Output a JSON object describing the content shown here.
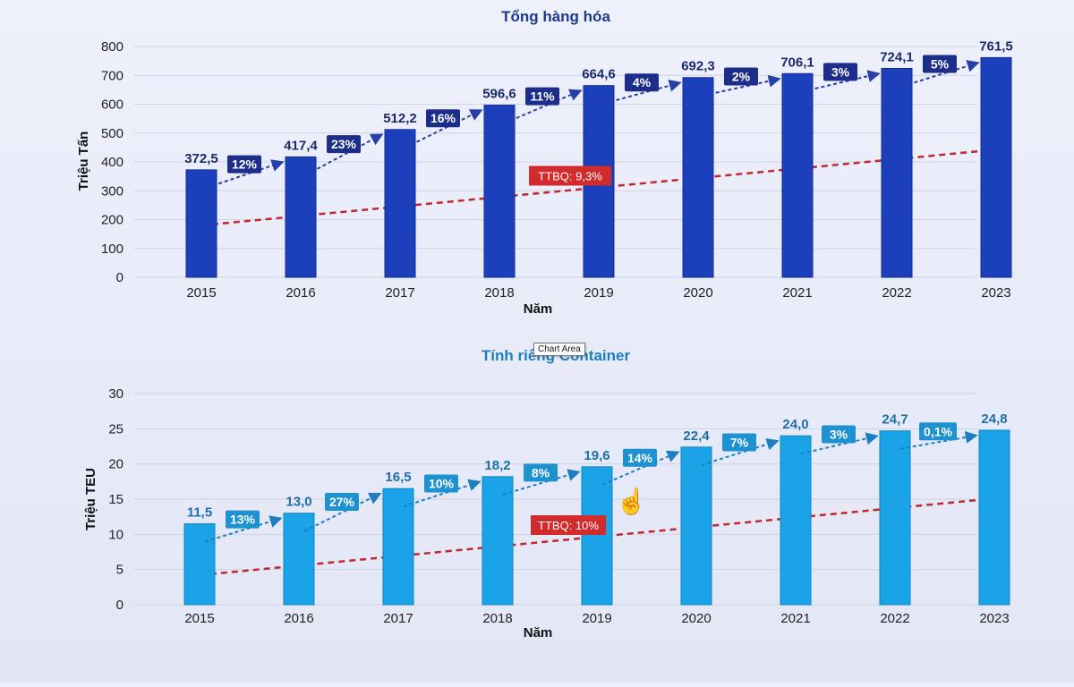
{
  "chart_data": [
    {
      "type": "bar",
      "title": "Tổng hàng hóa",
      "xlabel": "Năm",
      "ylabel": "Triệu Tấn",
      "ylim": [
        0,
        800
      ],
      "yticks": [
        "0",
        "100",
        "200",
        "300",
        "400",
        "500",
        "600",
        "700",
        "800"
      ],
      "categories": [
        "2015",
        "2016",
        "2017",
        "2018",
        "2019",
        "2020",
        "2021",
        "2022",
        "2023"
      ],
      "values": [
        372.5,
        417.4,
        512.2,
        596.6,
        664.6,
        692.3,
        706.1,
        724.1,
        761.5
      ],
      "value_labels": [
        "372,5",
        "417,4",
        "512,2",
        "596,6",
        "664,6",
        "692,3",
        "706,1",
        "724,1",
        "761,5"
      ],
      "growth_labels": [
        "12%",
        "23%",
        "16%",
        "11%",
        "4%",
        "2%",
        "3%",
        "5%"
      ],
      "average_growth_label": "TTBQ: 9,3%",
      "trend_line": [
        [
          2015,
          180
        ],
        [
          2023,
          445
        ]
      ],
      "colors": {
        "bar": "#1c3fbc",
        "bar_edge": "#142d90",
        "title": "#1d3a8a",
        "value": "#1b2a6b",
        "growth_bg": "#1c2d8a",
        "arrow": "#2740a8",
        "trend": "#c0282d",
        "avg_bg": "#d22b2b",
        "grid": "#cfd3e2"
      }
    },
    {
      "type": "bar",
      "title": "Tính riêng Container",
      "xlabel": "Năm",
      "ylabel": "Triệu TEU",
      "ylim": [
        0,
        30
      ],
      "yticks": [
        "0",
        "5",
        "10",
        "15",
        "20",
        "25",
        "30"
      ],
      "categories": [
        "2015",
        "2016",
        "2017",
        "2018",
        "2019",
        "2020",
        "2021",
        "2022",
        "2023"
      ],
      "values": [
        11.5,
        13.0,
        16.5,
        18.2,
        19.6,
        22.4,
        24.0,
        24.7,
        24.8
      ],
      "value_labels": [
        "11,5",
        "13,0",
        "16,5",
        "18,2",
        "19,6",
        "22,4",
        "24,0",
        "24,7",
        "24,8"
      ],
      "growth_labels": [
        "13%",
        "27%",
        "10%",
        "8%",
        "14%",
        "7%",
        "3%",
        "0,1%"
      ],
      "average_growth_label": "TTBQ: 10%",
      "trend_line": [
        [
          2015,
          4.2
        ],
        [
          2023,
          15.2
        ]
      ],
      "colors": {
        "bar": "#1aa3e6",
        "bar_edge": "#0f86c4",
        "title": "#1b7fc2",
        "value": "#1d6fa8",
        "growth_bg": "#1e91d0",
        "arrow": "#1e7fc0",
        "trend": "#c0282d",
        "avg_bg": "#d22b2b",
        "grid": "#cfd3e2"
      }
    }
  ],
  "tooltip": {
    "label": "Chart Area"
  },
  "cursor": {
    "icon": "hand-pointer-icon"
  }
}
